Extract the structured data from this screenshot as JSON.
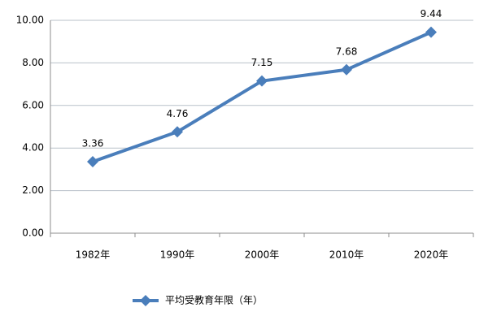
{
  "chart_data": {
    "type": "line",
    "categories": [
      "1982年",
      "1990年",
      "2000年",
      "2010年",
      "2020年"
    ],
    "series": [
      {
        "name": "平均受教育年限（年）",
        "color": "#4a7ebb",
        "values": [
          3.36,
          4.76,
          7.15,
          7.68,
          9.44
        ]
      }
    ],
    "ylim": [
      0,
      10
    ],
    "yticks": [
      {
        "value": 0,
        "label": "0.00"
      },
      {
        "value": 2,
        "label": "2.00"
      },
      {
        "value": 4,
        "label": "4.00"
      },
      {
        "value": 6,
        "label": "6.00"
      },
      {
        "value": 8,
        "label": "8.00"
      },
      {
        "value": 10,
        "label": "10.00"
      }
    ],
    "grid": true,
    "legend": "bottom"
  }
}
